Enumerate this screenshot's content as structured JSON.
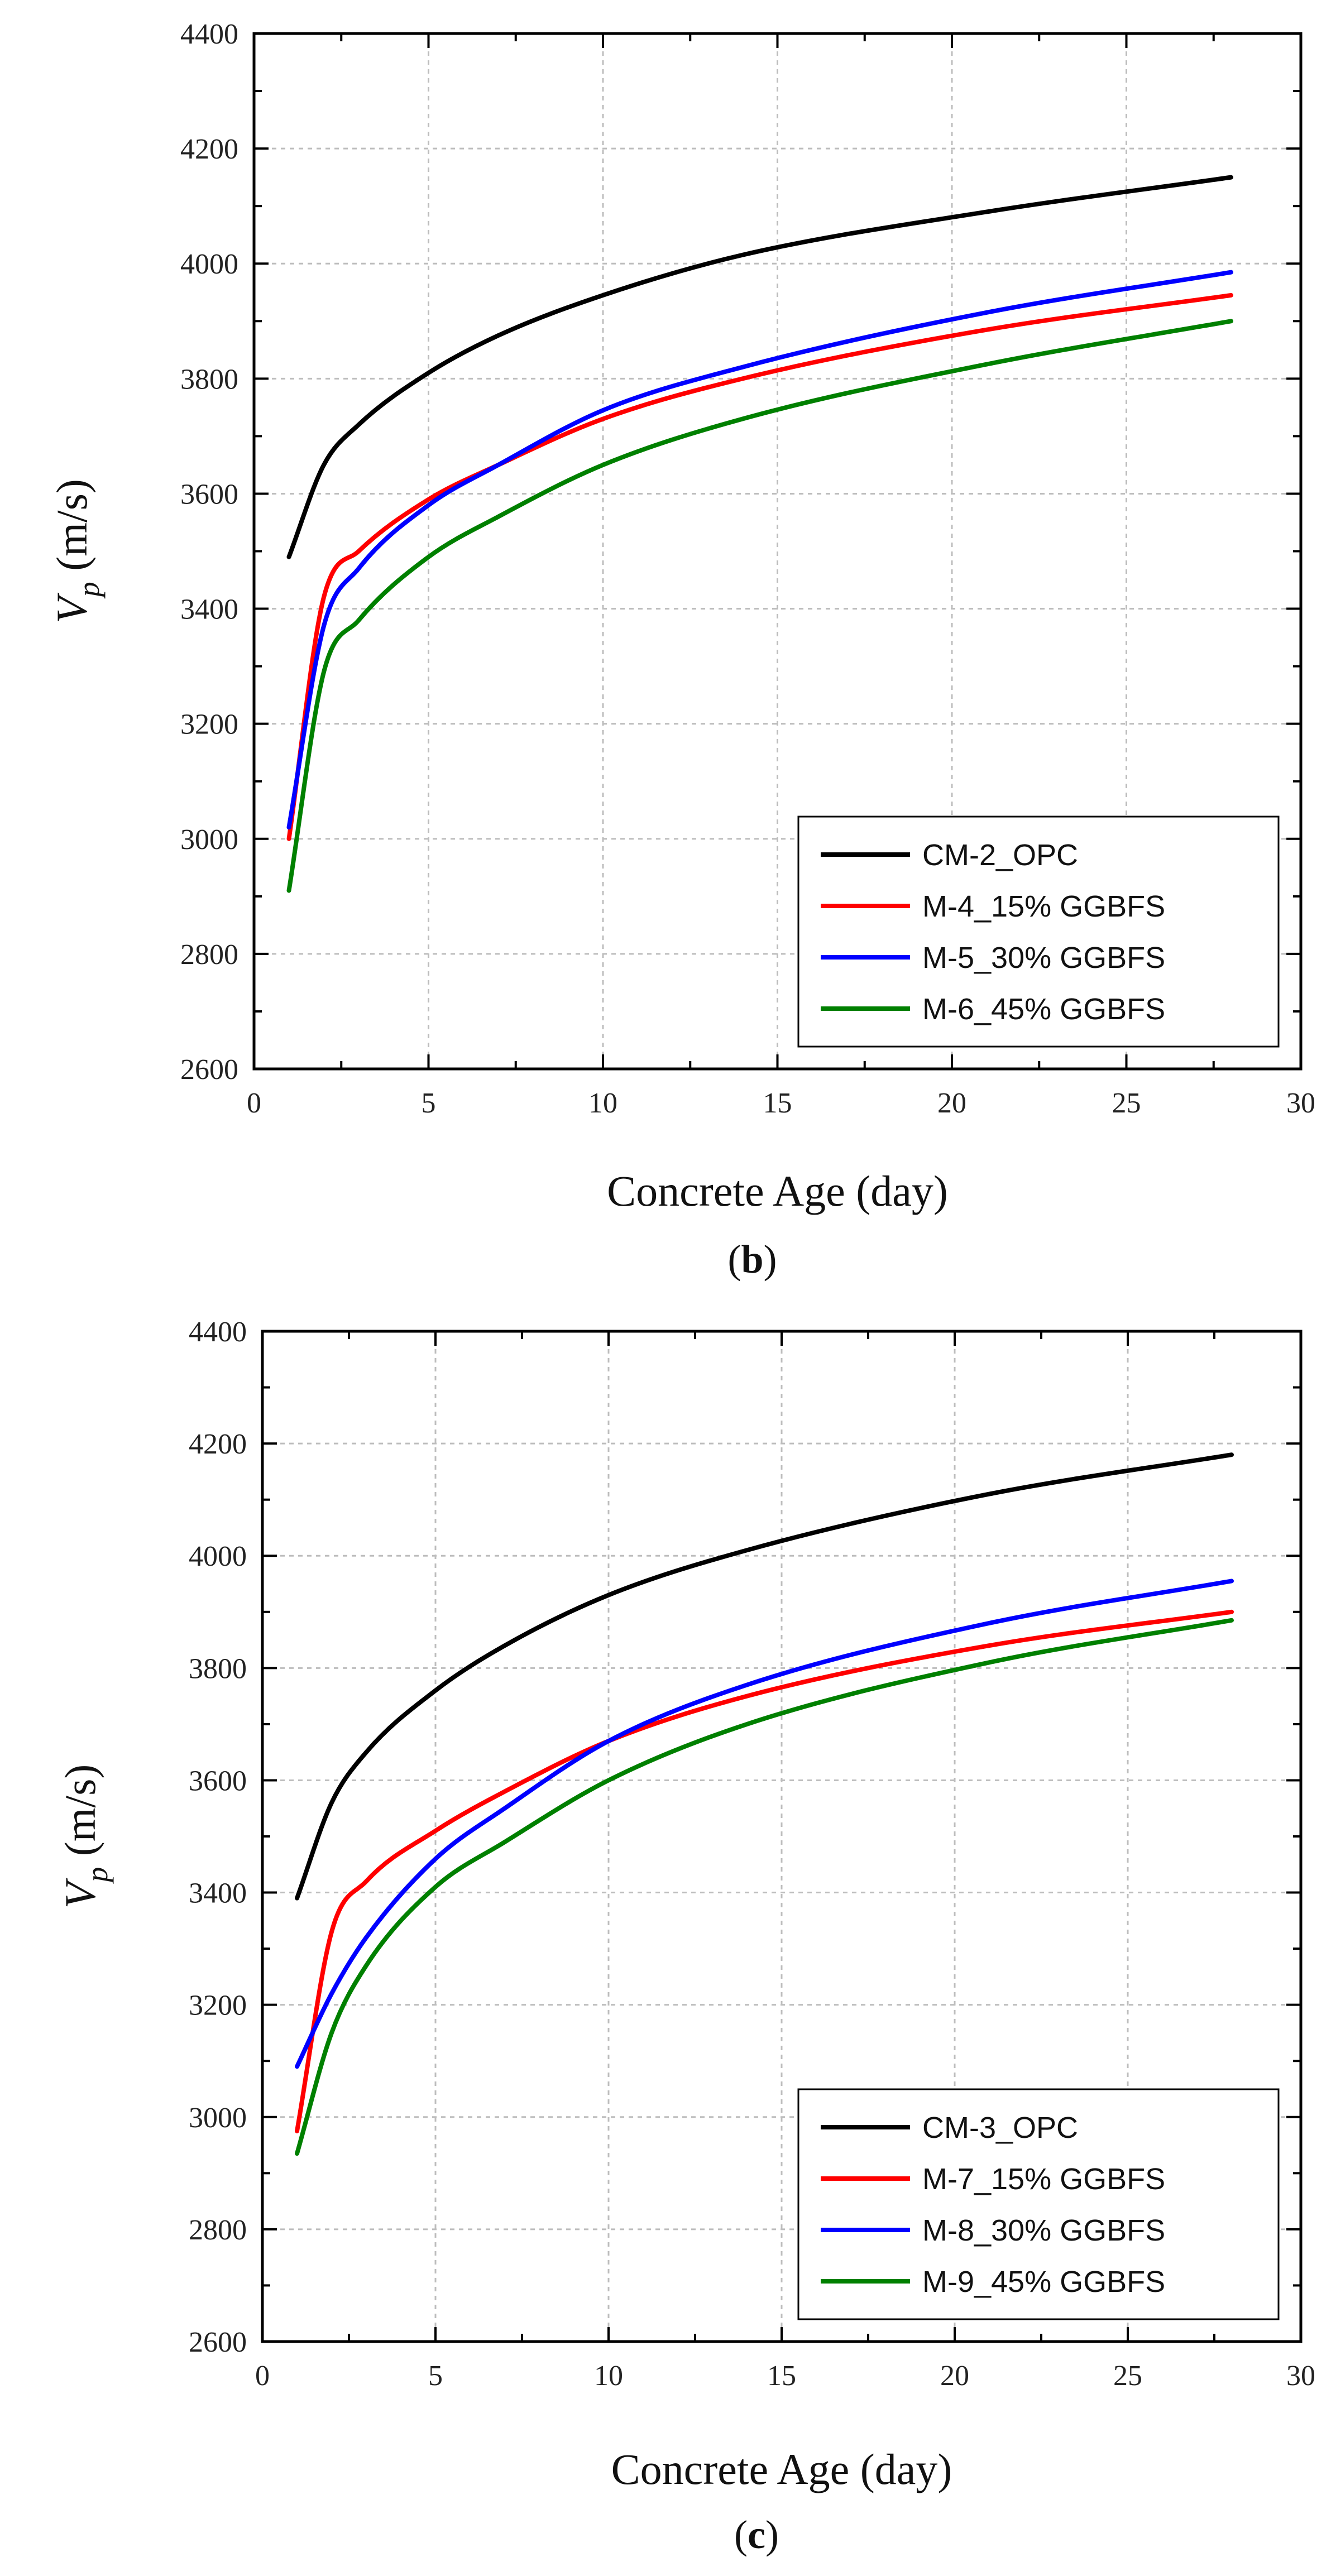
{
  "chart_data": [
    {
      "type": "line",
      "panel_label": {
        "open": "(",
        "letter": "b",
        "close": ")"
      },
      "title": "",
      "xlabel": "Concrete Age (day)",
      "ylabel": {
        "main": "V",
        "sub": "p",
        "unit": " (m/s)"
      },
      "xlim": [
        0,
        30
      ],
      "ylim": [
        2600,
        4400
      ],
      "xticks": [
        0,
        5,
        10,
        15,
        20,
        25,
        30
      ],
      "yticks": [
        2600,
        2800,
        3000,
        3200,
        3400,
        3600,
        3800,
        4000,
        4200,
        4400
      ],
      "grid": true,
      "legend_position": "bottom-right",
      "x": [
        1,
        2,
        3,
        5,
        7,
        10,
        14,
        21,
        28
      ],
      "series": [
        {
          "name": "CM-2_OPC",
          "color": "#000000",
          "values": [
            3490,
            3650,
            3720,
            3810,
            3875,
            3945,
            4015,
            4090,
            4150
          ]
        },
        {
          "name": "M-4_15% GGBFS",
          "color": "#ff0000",
          "values": [
            3000,
            3420,
            3500,
            3590,
            3650,
            3730,
            3800,
            3885,
            3945
          ]
        },
        {
          "name": "M-5_30% GGBFS",
          "color": "#0000ff",
          "values": [
            3020,
            3370,
            3470,
            3580,
            3650,
            3745,
            3820,
            3915,
            3985
          ]
        },
        {
          "name": "M-6_45% GGBFS",
          "color": "#008000",
          "values": [
            2910,
            3290,
            3380,
            3490,
            3560,
            3650,
            3730,
            3825,
            3900
          ]
        }
      ]
    },
    {
      "type": "line",
      "panel_label": {
        "open": "(",
        "letter": "c",
        "close": ")"
      },
      "title": "",
      "xlabel": "Concrete Age (day)",
      "ylabel": {
        "main": "V",
        "sub": "p",
        "unit": " (m/s)"
      },
      "xlim": [
        0,
        30
      ],
      "ylim": [
        2600,
        4400
      ],
      "xticks": [
        0,
        5,
        10,
        15,
        20,
        25,
        30
      ],
      "yticks": [
        2600,
        2800,
        3000,
        3200,
        3400,
        3600,
        3800,
        4000,
        4200,
        4400
      ],
      "grid": true,
      "legend_position": "bottom-right",
      "x": [
        1,
        2,
        3,
        5,
        7,
        10,
        14,
        21,
        28
      ],
      "series": [
        {
          "name": "CM-3_OPC",
          "color": "#000000",
          "values": [
            3390,
            3560,
            3650,
            3760,
            3840,
            3930,
            4010,
            4110,
            4180
          ]
        },
        {
          "name": "M-7_15% GGBFS",
          "color": "#ff0000",
          "values": [
            2975,
            3330,
            3420,
            3510,
            3580,
            3670,
            3750,
            3840,
            3900
          ]
        },
        {
          "name": "M-8_30% GGBFS",
          "color": "#0000ff",
          "values": [
            3090,
            3220,
            3320,
            3460,
            3550,
            3670,
            3770,
            3880,
            3955
          ]
        },
        {
          "name": "M-9_45% GGBFS",
          "color": "#008000",
          "values": [
            2935,
            3150,
            3270,
            3410,
            3490,
            3600,
            3700,
            3810,
            3885
          ]
        }
      ]
    }
  ]
}
